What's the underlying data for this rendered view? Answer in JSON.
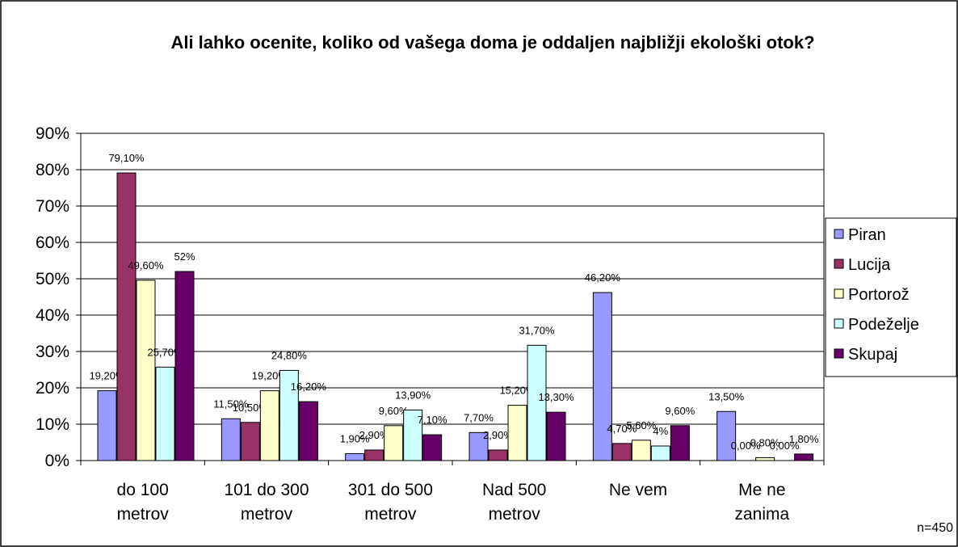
{
  "chart_data": {
    "type": "bar",
    "title": "Ali lahko ocenite, koliko od vašega doma je oddaljen najbližji ekološki otok?",
    "categories": [
      "do 100\nmetrov",
      "101 do 300\nmetrov",
      "301 do 500\nmetrov",
      "Nad 500\nmetrov",
      "Ne vem",
      "Me ne\nzanima"
    ],
    "series": [
      {
        "name": "Piran",
        "color": "#9999ff",
        "values": [
          19.2,
          11.5,
          1.9,
          7.7,
          46.2,
          13.5
        ],
        "value_labels": [
          "19,20%",
          "11,50%",
          "1,90%",
          "7,70%",
          "46,20%",
          "13,50%"
        ]
      },
      {
        "name": "Lucija",
        "color": "#993366",
        "values": [
          79.1,
          10.5,
          2.9,
          2.9,
          4.7,
          0
        ],
        "value_labels": [
          "79,10%",
          "10,50%",
          "2,90%",
          "2,90%",
          "4,70%",
          "0,00%"
        ]
      },
      {
        "name": "Portorož",
        "color": "#ffffcc",
        "values": [
          49.6,
          19.2,
          9.6,
          15.2,
          5.6,
          0.8
        ],
        "value_labels": [
          "49,60%",
          "19,20%",
          "9,60%",
          "15,20%",
          "5,60%",
          "0,80%"
        ]
      },
      {
        "name": "Podeželje",
        "color": "#ccffff",
        "values": [
          25.7,
          24.8,
          13.9,
          31.7,
          4,
          0
        ],
        "value_labels": [
          "25,70%",
          "24,80%",
          "13,90%",
          "31,70%",
          "4%",
          "0,00%"
        ]
      },
      {
        "name": "Skupaj",
        "color": "#660066",
        "values": [
          52,
          16.2,
          7.1,
          13.3,
          9.6,
          1.8
        ],
        "value_labels": [
          "52%",
          "16,20%",
          "7,10%",
          "13,30%",
          "9,60%",
          "1,80%"
        ]
      }
    ],
    "ylim": [
      0,
      90
    ],
    "yticks": [
      {
        "value": 0,
        "label": "0%"
      },
      {
        "value": 10,
        "label": "10%"
      },
      {
        "value": 20,
        "label": "20%"
      },
      {
        "value": 30,
        "label": "30%"
      },
      {
        "value": 40,
        "label": "40%"
      },
      {
        "value": 50,
        "label": "50%"
      },
      {
        "value": 60,
        "label": "60%"
      },
      {
        "value": 70,
        "label": "70%"
      },
      {
        "value": 80,
        "label": "80%"
      },
      {
        "value": 90,
        "label": "90%"
      }
    ],
    "grid": true,
    "legend": "right",
    "annotation": "n=450"
  }
}
